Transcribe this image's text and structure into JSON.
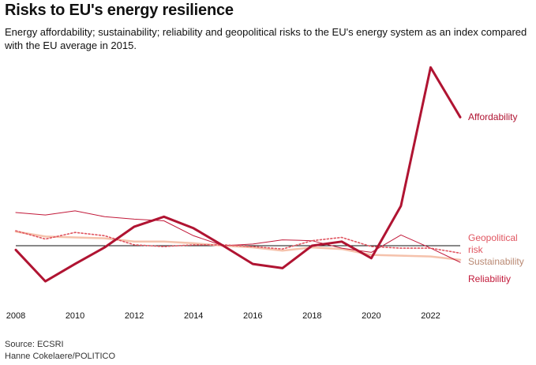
{
  "title": "Risks to EU's energy resilience",
  "subtitle": "Energy affordability; sustainability; reliability and geopolitical risks to the EU's energy system as an index compared with the EU average in 2015.",
  "source_line": "Source: ECSRI",
  "credit_line": "Hanne Cokelaere/POLITICO",
  "chart_data": {
    "type": "line",
    "title": "Risks to EU's energy resilience",
    "x": [
      2008,
      2009,
      2010,
      2011,
      2012,
      2013,
      2014,
      2015,
      2016,
      2017,
      2018,
      2019,
      2020,
      2021,
      2022,
      2023
    ],
    "x_ticks": [
      "2008",
      "2010",
      "2012",
      "2014",
      "2016",
      "2018",
      "2020",
      "2022"
    ],
    "xlim": [
      2008,
      2023
    ],
    "ylim": [
      -40,
      230
    ],
    "baseline": 0,
    "grid": false,
    "legend": "direct labels at line ends (right)",
    "series": [
      {
        "name": "Affordability",
        "color": "#b01432",
        "style": "thick",
        "values": [
          -5,
          -43,
          -22,
          -2,
          23,
          35,
          21,
          0,
          -22,
          -27,
          0,
          5,
          -15,
          48,
          215,
          155
        ]
      },
      {
        "name": "Geopolitical risk",
        "color": "#e05560",
        "style": "dotted",
        "values": [
          18,
          8,
          16,
          12,
          1,
          -1,
          1,
          1,
          -1,
          -4,
          6,
          10,
          -1,
          -3,
          -3,
          -9
        ]
      },
      {
        "name": "Sustainability",
        "color": "#f5c2ac",
        "style": "thin",
        "values": [
          17,
          11,
          10,
          9,
          5,
          5,
          3,
          0,
          -2,
          -6,
          -2,
          -4,
          -11,
          -12,
          -13,
          -17
        ]
      },
      {
        "name": "Reliabilitiy",
        "color": "#c21a3a",
        "style": "hairline",
        "values": [
          40,
          37,
          42,
          35,
          32,
          30,
          12,
          0,
          2,
          7,
          6,
          -3,
          -8,
          13,
          -3,
          -20
        ]
      }
    ]
  }
}
